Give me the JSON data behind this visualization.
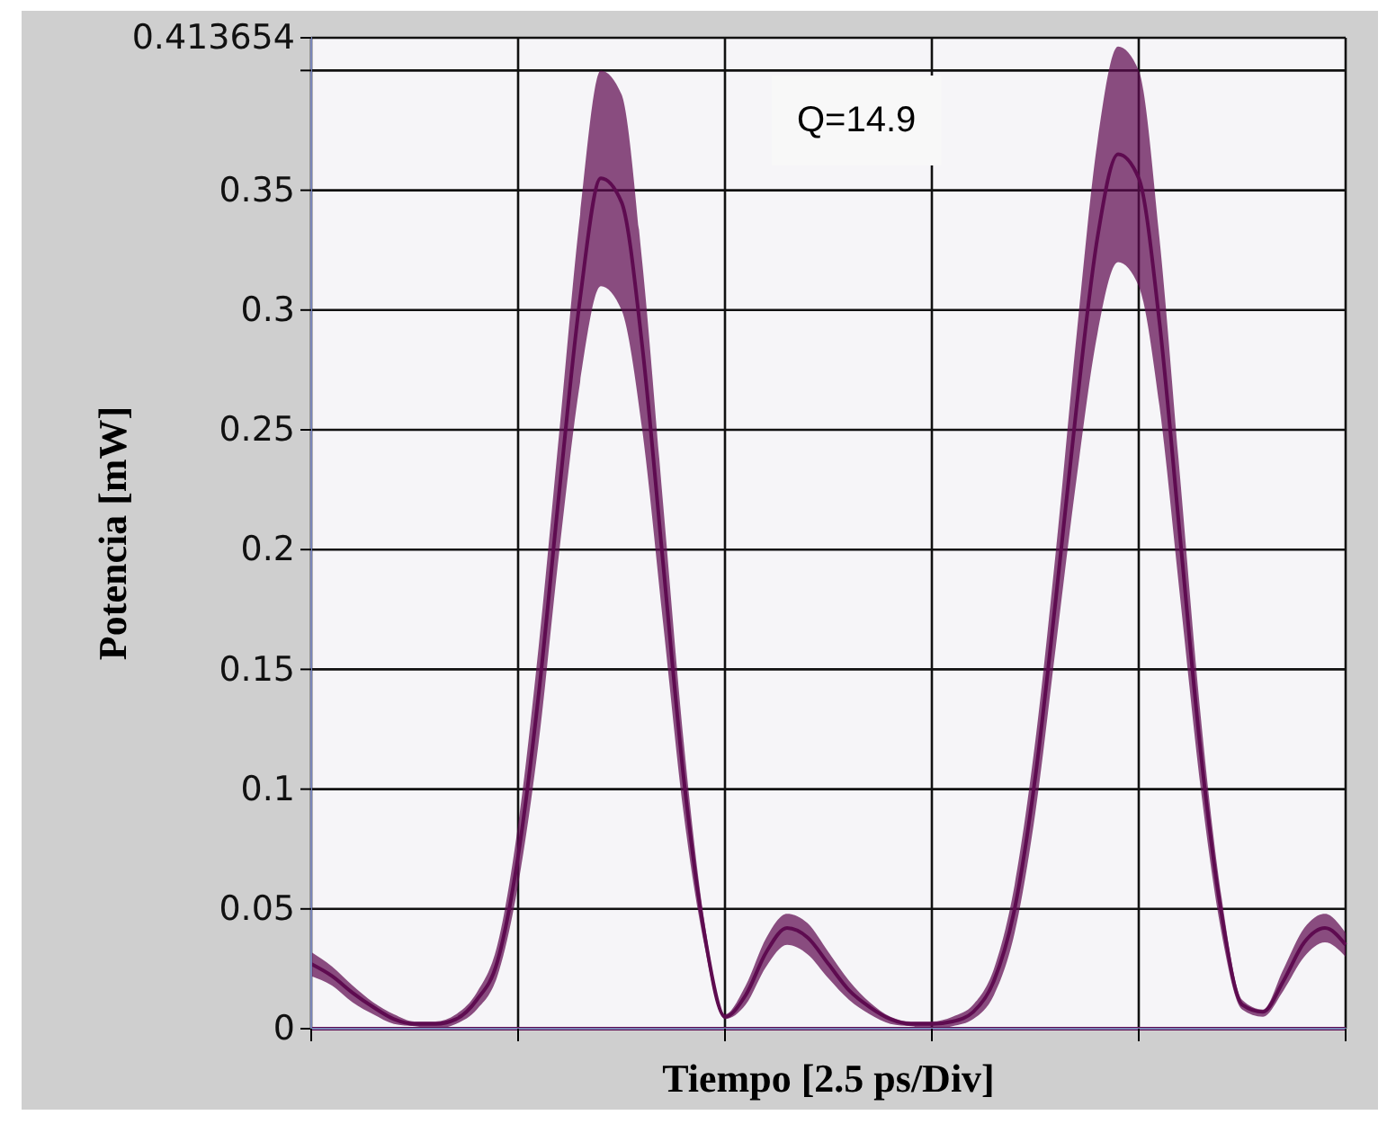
{
  "chart_data": {
    "type": "line",
    "xlabel": "Tiempo [2.5 ps/Div]",
    "ylabel": "Potencia [mW]",
    "categories": [
      null,
      null,
      null,
      null,
      null,
      null,
      null,
      null,
      null,
      null,
      null,
      null,
      null,
      null,
      null,
      null,
      null,
      null,
      null,
      null,
      null,
      null,
      null,
      null,
      null,
      null,
      null,
      null,
      null,
      null,
      null,
      null,
      null,
      null,
      null,
      null,
      null,
      null,
      null,
      null,
      null,
      null,
      null,
      null,
      null,
      null,
      null,
      null,
      null,
      null,
      null
    ],
    "series": [
      {
        "color": "#5e0b50",
        "values": [
          0.027,
          0.022,
          0.015,
          0.009,
          0.004,
          0.002,
          0.002,
          0.004,
          0.012,
          0.028,
          0.072,
          0.14,
          0.225,
          0.305,
          0.355,
          0.345,
          0.285,
          0.195,
          0.105,
          0.04,
          0.005,
          0.014,
          0.032,
          0.042,
          0.038,
          0.027,
          0.016,
          0.009,
          0.004,
          0.002,
          0.002,
          0.003,
          0.007,
          0.02,
          0.05,
          0.105,
          0.18,
          0.26,
          0.33,
          0.365,
          0.355,
          0.295,
          0.205,
          0.115,
          0.048,
          0.01,
          0.007,
          0.02,
          0.036,
          0.042,
          0.035
        ],
        "lower": [
          0.022,
          0.018,
          0.011,
          0.006,
          0.002,
          0.001,
          0,
          0.002,
          0.008,
          0.022,
          0.06,
          0.12,
          0.2,
          0.27,
          0.31,
          0.3,
          0.25,
          0.17,
          0.09,
          0.035,
          0.004,
          0.01,
          0.026,
          0.035,
          0.031,
          0.021,
          0.012,
          0.006,
          0.002,
          0.001,
          0,
          0.001,
          0.004,
          0.014,
          0.04,
          0.09,
          0.16,
          0.23,
          0.29,
          0.32,
          0.31,
          0.26,
          0.18,
          0.1,
          0.04,
          0.008,
          0.005,
          0.016,
          0.03,
          0.036,
          0.03
        ],
        "upper": [
          0.032,
          0.026,
          0.018,
          0.011,
          0.006,
          0.003,
          0.003,
          0.006,
          0.015,
          0.035,
          0.085,
          0.16,
          0.25,
          0.34,
          0.4,
          0.39,
          0.32,
          0.22,
          0.12,
          0.045,
          0.006,
          0.018,
          0.038,
          0.048,
          0.044,
          0.032,
          0.02,
          0.011,
          0.005,
          0.003,
          0.003,
          0.005,
          0.01,
          0.025,
          0.06,
          0.12,
          0.2,
          0.29,
          0.37,
          0.41,
          0.4,
          0.33,
          0.23,
          0.13,
          0.055,
          0.012,
          0.008,
          0.025,
          0.042,
          0.048,
          0.04
        ]
      },
      {
        "color": "#5e0b50",
        "values": [
          0,
          0,
          0,
          0,
          0,
          0,
          0,
          0,
          0,
          0,
          0,
          0,
          0,
          0,
          0,
          0,
          0,
          0,
          0,
          0,
          0,
          0,
          0,
          0,
          0,
          0,
          0,
          0,
          0,
          0,
          0,
          0,
          0,
          0,
          0,
          0,
          0,
          0,
          0,
          0,
          0,
          0,
          0,
          0,
          0,
          0,
          0,
          0,
          0,
          0,
          0
        ]
      }
    ],
    "ylim": [
      0,
      0.413654
    ],
    "yticks": [
      0,
      0.05,
      0.1,
      0.15,
      0.2,
      0.25,
      0.3,
      0.35,
      {
        "value": 0.4,
        "label": null
      },
      0.413654
    ],
    "grid": true,
    "tick_labels": "y",
    "annotations": [
      "Q=14.9"
    ]
  }
}
